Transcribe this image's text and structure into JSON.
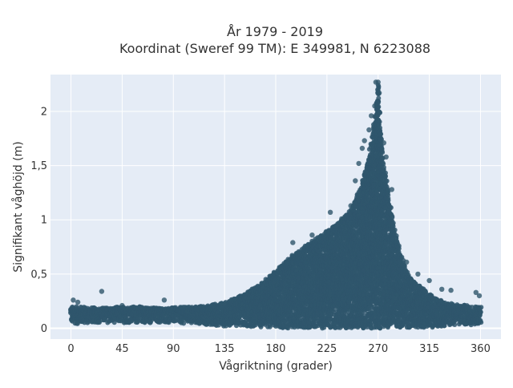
{
  "chart_data": {
    "type": "scatter",
    "title_lines": [
      "År 1979 - 2019",
      "Koordinat (Sweref 99 TM): E 349981, N 6223088"
    ],
    "xlabel": "Vågriktning (grader)",
    "ylabel": "Signifikant våghöjd (m)",
    "xlim": [
      -18,
      378
    ],
    "ylim": [
      -0.1,
      2.34
    ],
    "xticks": [
      0,
      45,
      90,
      135,
      180,
      225,
      270,
      315,
      360
    ],
    "xtick_labels": [
      "0",
      "45",
      "90",
      "135",
      "180",
      "225",
      "270",
      "315",
      "360"
    ],
    "yticks": [
      0,
      0.5,
      1,
      1.5,
      2
    ],
    "ytick_labels": [
      "0",
      "0,5",
      "1",
      "1,5",
      "2"
    ],
    "grid": true,
    "marker_color": "#2f566c",
    "plot_background": "#e5ecf6",
    "envelope": {
      "direction": [
        0,
        10,
        20,
        30,
        45,
        60,
        75,
        90,
        105,
        120,
        135,
        145,
        155,
        165,
        175,
        185,
        195,
        205,
        215,
        225,
        235,
        245,
        255,
        260,
        265,
        268,
        270,
        272,
        275,
        280,
        285,
        290,
        295,
        300,
        310,
        320,
        330,
        340,
        350,
        360
      ],
      "lower": [
        0.04,
        0.04,
        0.05,
        0.05,
        0.05,
        0.05,
        0.05,
        0.05,
        0.04,
        0.03,
        0.02,
        0.02,
        0.01,
        0.01,
        0.01,
        0.0,
        0.0,
        0.0,
        0.0,
        0.0,
        0.0,
        0.0,
        0.0,
        0.0,
        0.0,
        0.0,
        0.0,
        0.0,
        0.0,
        0.0,
        0.0,
        0.0,
        0.0,
        0.0,
        0.0,
        0.01,
        0.02,
        0.03,
        0.03,
        0.04
      ],
      "upper": [
        0.2,
        0.2,
        0.19,
        0.19,
        0.2,
        0.2,
        0.19,
        0.19,
        0.2,
        0.21,
        0.24,
        0.28,
        0.33,
        0.4,
        0.48,
        0.58,
        0.68,
        0.75,
        0.83,
        0.9,
        0.97,
        1.08,
        1.3,
        1.5,
        1.78,
        2.0,
        2.25,
        1.85,
        1.5,
        1.18,
        0.88,
        0.68,
        0.52,
        0.44,
        0.36,
        0.28,
        0.24,
        0.22,
        0.21,
        0.2
      ]
    },
    "outliers": [
      {
        "x": 2,
        "y": 0.26
      },
      {
        "x": 6,
        "y": 0.24
      },
      {
        "x": 27,
        "y": 0.34
      },
      {
        "x": 45,
        "y": 0.21
      },
      {
        "x": 82,
        "y": 0.26
      },
      {
        "x": 195,
        "y": 0.79
      },
      {
        "x": 212,
        "y": 0.86
      },
      {
        "x": 228,
        "y": 1.07
      },
      {
        "x": 238,
        "y": 1.01
      },
      {
        "x": 246,
        "y": 1.13
      },
      {
        "x": 250,
        "y": 1.36
      },
      {
        "x": 253,
        "y": 1.52
      },
      {
        "x": 256,
        "y": 1.66
      },
      {
        "x": 258,
        "y": 1.73
      },
      {
        "x": 262,
        "y": 1.83
      },
      {
        "x": 264,
        "y": 1.96
      },
      {
        "x": 267,
        "y": 2.05
      },
      {
        "x": 268,
        "y": 2.27
      },
      {
        "x": 270,
        "y": 2.27
      },
      {
        "x": 271,
        "y": 2.17
      },
      {
        "x": 275,
        "y": 1.71
      },
      {
        "x": 277,
        "y": 1.58
      },
      {
        "x": 282,
        "y": 1.28
      },
      {
        "x": 295,
        "y": 0.61
      },
      {
        "x": 305,
        "y": 0.5
      },
      {
        "x": 315,
        "y": 0.44
      },
      {
        "x": 326,
        "y": 0.36
      },
      {
        "x": 334,
        "y": 0.35
      },
      {
        "x": 356,
        "y": 0.33
      },
      {
        "x": 359,
        "y": 0.3
      }
    ]
  }
}
